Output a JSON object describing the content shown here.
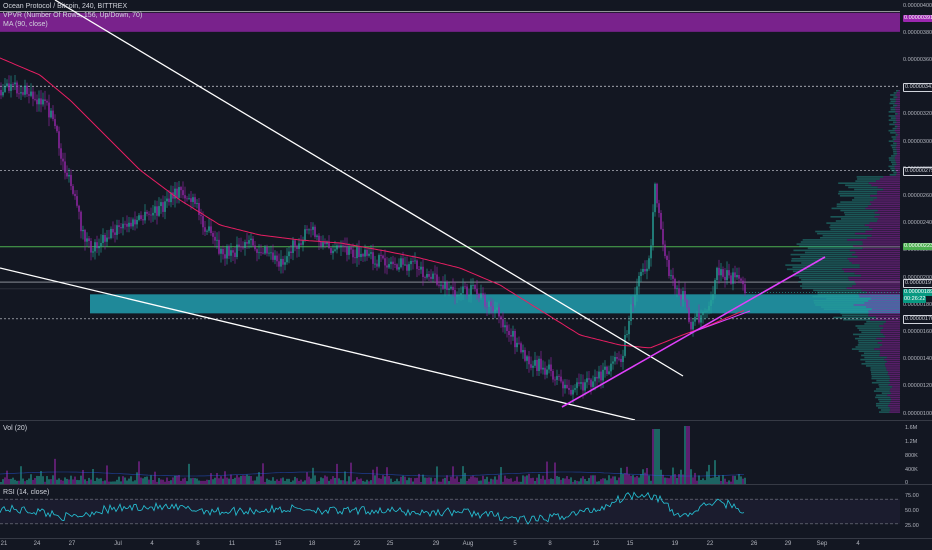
{
  "main": {
    "legend": {
      "title": "Ocean Protocol / Bitcoin, 240, BITTREX",
      "vpvr": "VPVR (Number Of Rows, 156, Up/Down, 70)",
      "ma": "MA (90, close)"
    },
    "price_axis": [
      "0.00000400",
      "0.00000380",
      "0.00000360",
      "0.00000340",
      "0.00000320",
      "0.00000300",
      "0.00000280",
      "0.00000260",
      "0.00000240",
      "0.00000220",
      "0.00000200",
      "0.00000180",
      "0.00000160",
      "0.00000140",
      "0.00000120",
      "0.00000100"
    ],
    "price_labels": [
      {
        "value": "0.00000391",
        "bg": "#9c27b0",
        "fg": "#ffffff"
      },
      {
        "value": "0.00000341",
        "bg": "#131722",
        "fg": "#d1d4dc"
      },
      {
        "value": "0.00000279",
        "bg": "#131722",
        "fg": "#d1d4dc"
      },
      {
        "value": "0.00000223",
        "bg": "#4caf50",
        "fg": "#ffffff"
      },
      {
        "value": "0.00000197",
        "bg": "#131722",
        "fg": "#d1d4dc"
      },
      {
        "value": "0.00000189",
        "bg": "#089981",
        "fg": "#ffffff"
      },
      {
        "value": "00:26:22",
        "bg": "#089981",
        "fg": "#ffffff"
      },
      {
        "value": "0.00000170",
        "bg": "#131722",
        "fg": "#d1d4dc"
      }
    ]
  },
  "volume": {
    "legend": "Vol (20)",
    "axis": [
      "1.6M",
      "1.2M",
      "800K",
      "400K",
      "0"
    ]
  },
  "rsi": {
    "legend": "RSI (14, close)",
    "axis": [
      "75.00",
      "50.00",
      "25.00"
    ]
  },
  "time_axis": [
    "21",
    "24",
    "27",
    "Jul",
    "4",
    "8",
    "11",
    "15",
    "18",
    "22",
    "25",
    "29",
    "Aug",
    "5",
    "8",
    "12",
    "15",
    "19",
    "22",
    "26",
    "29",
    "Sep",
    "4"
  ],
  "colors": {
    "background": "#131722",
    "up": "#26a69a",
    "down": "#9c27b0",
    "ma": "#e91e63",
    "trendline": "#ffffff",
    "support_zone": "#26c6da",
    "resistance_zone": "#9c27b0",
    "green_level": "#4caf50"
  }
}
